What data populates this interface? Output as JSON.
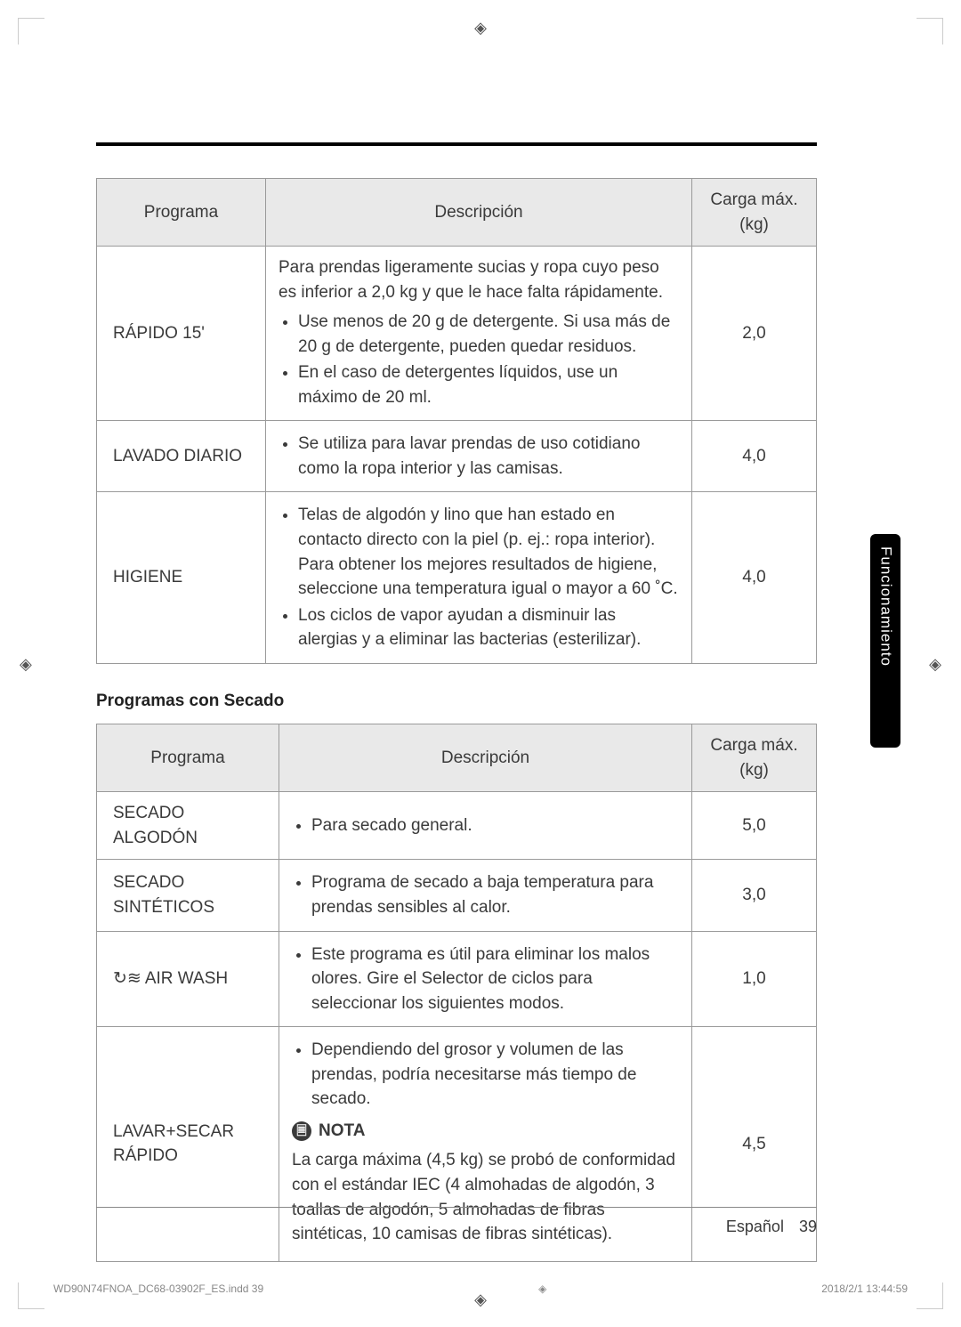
{
  "registration_glyph": "◈",
  "top_rule_color": "#000000",
  "table1": {
    "headers": {
      "program": "Programa",
      "description": "Descripción",
      "load": "Carga máx. (kg)"
    },
    "rows": [
      {
        "name": "RÁPIDO 15'",
        "para": "Para prendas ligeramente sucias y ropa cuyo peso es inferior a 2,0 kg y que le hace falta rápidamente.",
        "bullets": [
          "Use menos de 20 g de detergente. Si usa más de 20 g de detergente, pueden quedar residuos.",
          "En el caso de detergentes líquidos, use un máximo de 20 ml."
        ],
        "load": "2,0"
      },
      {
        "name": "LAVADO DIARIO",
        "bullets": [
          "Se utiliza para lavar prendas de uso cotidiano como la ropa interior y las camisas."
        ],
        "load": "4,0"
      },
      {
        "name": "HIGIENE",
        "bullets": [
          "Telas de algodón y lino que han estado en contacto directo con la piel (p. ej.: ropa interior). Para obtener los mejores resultados de higiene, seleccione una temperatura igual o mayor a 60 ˚C.",
          "Los ciclos de vapor ayudan a disminuir las alergias y a eliminar las bacterias (esterilizar)."
        ],
        "load": "4,0"
      }
    ]
  },
  "section2_title": "Programas con Secado",
  "table2": {
    "headers": {
      "program": "Programa",
      "description": "Descripción",
      "load": "Carga máx. (kg)"
    },
    "rows": [
      {
        "name": "SECADO ALGODÓN",
        "bullets": [
          "Para secado general."
        ],
        "load": "5,0"
      },
      {
        "name": "SECADO SINTÉTICOS",
        "bullets": [
          "Programa de secado a baja temperatura para prendas sensibles al calor."
        ],
        "load": "3,0"
      },
      {
        "name_icon": "↻≋",
        "name": "AIR WASH",
        "bullets": [
          "Este programa es útil para eliminar los malos olores. Gire el Selector de ciclos para seleccionar los siguientes modos."
        ],
        "load": "1,0"
      },
      {
        "name": "LAVAR+SECAR RÁPIDO",
        "bullets": [
          "Dependiendo del grosor y volumen de las prendas, podría necesitarse más tiempo de secado."
        ],
        "nota_label": "NOTA",
        "nota_text": "La carga máxima (4,5 kg) se probó de conformidad con el estándar IEC (4 almohadas de algodón, 3 toallas de algodón, 5 almohadas de fibras sintéticas, 10 camisas de fibras sintéticas).",
        "load": "4,5"
      }
    ]
  },
  "side_tab": "Funcionamiento",
  "footer": {
    "lang": "Español",
    "page": "39"
  },
  "print_line": {
    "left": "WD90N74FNOA_DC68-03902F_ES.indd   39",
    "right": "2018/2/1   13:44:59"
  }
}
